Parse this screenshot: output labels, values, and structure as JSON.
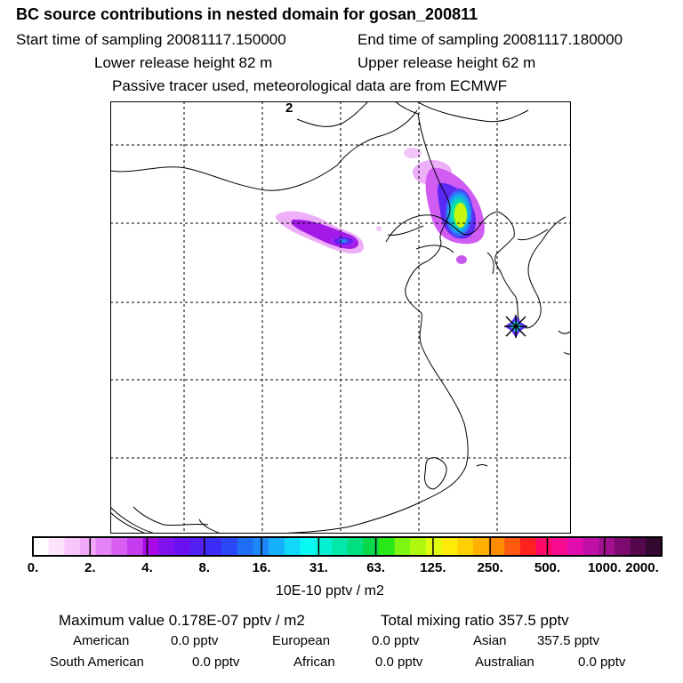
{
  "header": {
    "title": "BC  source contributions in nested domain for gosan_200811",
    "start_sampling": "Start time of sampling 20081117.150000",
    "end_sampling": "End time of sampling 20081117.180000",
    "lower_release": "Lower release height   82 m",
    "upper_release": "Upper release height   62 m",
    "tracer_note": "Passive tracer used, meteorological data are from ECMWF"
  },
  "map": {
    "grid_label": "2",
    "receptor_marker": "gosan-star"
  },
  "colorbar": {
    "ticks": [
      "0.",
      "2.",
      "4.",
      "8.",
      "16.",
      "31.",
      "63.",
      "125.",
      "250.",
      "500.",
      "1000.",
      "2000."
    ],
    "unit_label": "10E-10 pptv / m2",
    "colors": [
      "#ffffff",
      "#fce4fd",
      "#f8c6fb",
      "#f2a8f8",
      "#e383f5",
      "#d85ff2",
      "#c63df0",
      "#a80ae8",
      "#7f12ee",
      "#6a10f2",
      "#5520f5",
      "#3a2cf6",
      "#2a48f8",
      "#1e6ef8",
      "#1c88f9",
      "#15b0f9",
      "#10d8f9",
      "#08f8f4",
      "#05f0d0",
      "#03e8a8",
      "#00e080",
      "#08d84e",
      "#28e818",
      "#7df610",
      "#b0f810",
      "#e0fa10",
      "#ffec08",
      "#ffcf05",
      "#ffb000",
      "#ff8c00",
      "#ff5a10",
      "#ff2020",
      "#ff0868",
      "#f80b90",
      "#e00cab",
      "#c010a8",
      "#a0108f",
      "#7d0a6f",
      "#55084e",
      "#35082f"
    ]
  },
  "stats": {
    "max_value": "Maximum value  0.178E-07 pptv / m2",
    "total_mixing": "Total mixing ratio      357.5 pptv",
    "regions": [
      {
        "label": "American",
        "value": "0.0 pptv"
      },
      {
        "label": "European",
        "value": "0.0 pptv"
      },
      {
        "label": "Asian",
        "value": "357.5 pptv"
      },
      {
        "label": "South American",
        "value": "0.0 pptv"
      },
      {
        "label": "African",
        "value": "0.0 pptv"
      },
      {
        "label": "Australian",
        "value": "0.0 pptv"
      }
    ]
  }
}
